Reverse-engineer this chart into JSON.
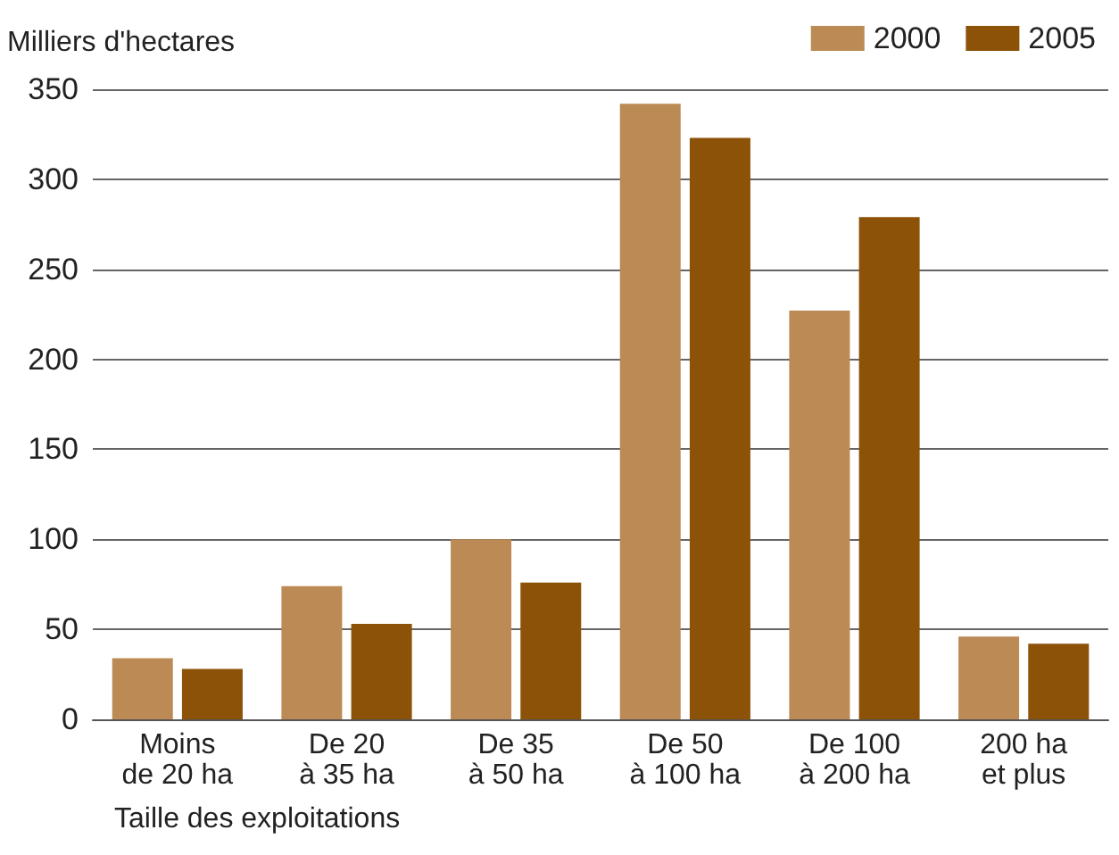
{
  "chart_data": {
    "type": "bar",
    "ylabel": "Milliers d'hectares",
    "xlabel": "Taille des exploitations",
    "categories": [
      "Moins\nde 20 ha",
      "De 20\nà 35 ha",
      "De 35\nà 50 ha",
      "De 50\nà 100 ha",
      "De 100\nà 200 ha",
      "200 ha\net plus"
    ],
    "series": [
      {
        "name": "2000",
        "color": "#bb8a55",
        "values": [
          34,
          74,
          100,
          342,
          227,
          46
        ]
      },
      {
        "name": "2005",
        "color": "#8c5208",
        "values": [
          28,
          53,
          76,
          323,
          279,
          42
        ]
      }
    ],
    "ylim": [
      0,
      350
    ],
    "yticks": [
      0,
      50,
      100,
      150,
      200,
      250,
      300,
      350
    ],
    "grid": "y",
    "legend": "top right"
  }
}
